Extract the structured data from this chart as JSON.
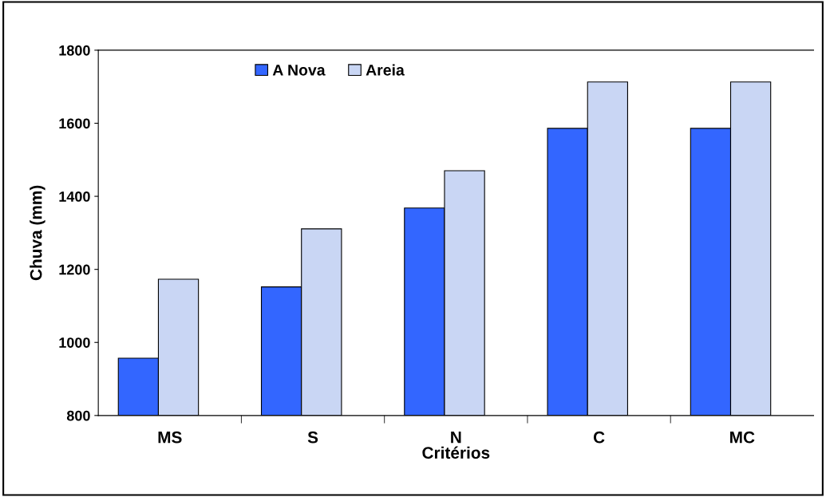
{
  "chart_data": {
    "type": "bar",
    "xlabel": "Critérios",
    "ylabel": "Chuva (mm)",
    "categories": [
      "MS",
      "S",
      "N",
      "C",
      "MC"
    ],
    "series": [
      {
        "name": "A Nova",
        "color": "#3366ff",
        "values": [
          957,
          1152,
          1368,
          1586,
          1586
        ]
      },
      {
        "name": "Areia",
        "color": "#c9d6f4",
        "values": [
          1173,
          1311,
          1470,
          1713,
          1713
        ]
      }
    ],
    "ylim": [
      800,
      1800
    ],
    "yticks": [
      800,
      1000,
      1200,
      1400,
      1600,
      1800
    ],
    "grid": false,
    "legend": "top left"
  }
}
